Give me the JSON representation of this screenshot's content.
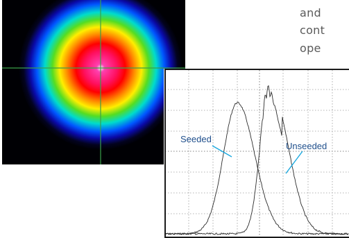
{
  "text_fragments": [
    "and",
    "cont",
    "ope"
  ],
  "scope": {
    "label_seeded": "Seeded",
    "label_unseeded": "Unseeded",
    "colors": {
      "trace": "#2b2b2b",
      "grid": "#9a9a9a",
      "border": "#1a1a1a",
      "label": "#1f4f8c",
      "leader": "#19a9e0"
    }
  },
  "beam_profile": {
    "palette": [
      "#ffffff",
      "#ff2aa0",
      "#ff0000",
      "#ff8800",
      "#ffee00",
      "#66dd22",
      "#00d8e6",
      "#0044ff",
      "#050590",
      "#000008"
    ]
  }
}
